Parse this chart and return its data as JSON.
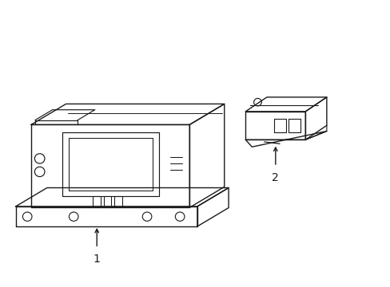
{
  "bg_color": "#ffffff",
  "line_color": "#1a1a1a",
  "line_width": 1.0,
  "fig_width": 4.89,
  "fig_height": 3.6,
  "label1": "1",
  "label2": "2",
  "xlim": [
    0,
    10
  ],
  "ylim": [
    0,
    7.5
  ]
}
